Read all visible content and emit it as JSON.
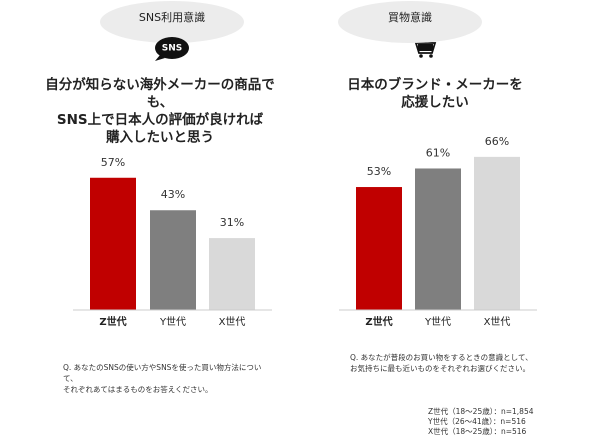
{
  "chart_data": [
    {
      "type": "bar",
      "badge": "SNS利用意識",
      "icon_text": "SNS",
      "title": [
        "自分が知らない海外メーカーの商品で",
        "も、",
        "SNS上で日本人の評価が良ければ",
        "購入したいと思う"
      ],
      "categories": [
        "Z世代",
        "Y世代",
        "X世代"
      ],
      "values": [
        57,
        43,
        31
      ],
      "value_labels": [
        "57%",
        "43%",
        "31%"
      ],
      "colors": [
        "#c00000",
        "#7f7f7f",
        "#d9d9d9"
      ],
      "note": [
        "Q. あなたのSNSの使い方やSNSを使った買い物方法につい",
        "て、",
        "それぞれあてはまるものをお答えください。"
      ]
    },
    {
      "type": "bar",
      "badge": "買物意識",
      "title": [
        "日本のブランド・メーカーを",
        "応援したい"
      ],
      "categories": [
        "Z世代",
        "Y世代",
        "X世代"
      ],
      "values": [
        53,
        61,
        66
      ],
      "value_labels": [
        "53%",
        "61%",
        "66%"
      ],
      "colors": [
        "#c00000",
        "#7f7f7f",
        "#d9d9d9"
      ],
      "note": [
        "Q. あなたが普段のお買い物をするときの意識として、",
        "お気持ちに最も近いものをそれぞれお選びください。"
      ]
    }
  ],
  "footnote": [
    "Z世代（18～25歳）：n=1,854",
    "Y世代（26～41歳）：n=516",
    "X世代（18～25歳）：n=516"
  ]
}
